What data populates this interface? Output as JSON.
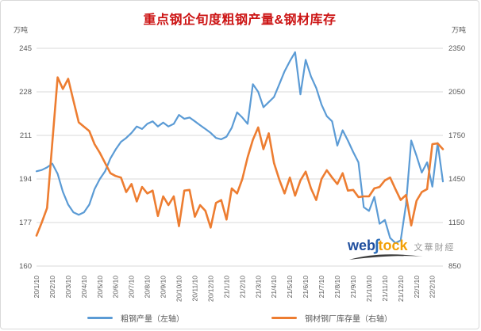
{
  "title": "重点钢企旬度粗钢产量&钢材库存",
  "unit_left": "万吨",
  "unit_right": "万吨",
  "legend": {
    "series1_label": "粗钢产量（左轴）",
    "series2_label": "钢材钢厂库存量（右轴）"
  },
  "watermark": {
    "web": "web",
    "tock": "tock",
    "cn": "文華財經"
  },
  "colors": {
    "series1": "#5b9bd5",
    "series2": "#ed7d31",
    "grid": "#d9d9d9",
    "tick_text": "#595959",
    "title": "#cc1414"
  },
  "chart_data": {
    "type": "line",
    "title": "重点钢企旬度粗钢产量&钢材库存",
    "x_tick_labels": [
      "20/1/10",
      "20/2/10",
      "20/3/10",
      "20/4/10",
      "20/5/10",
      "20/6/10",
      "20/7/10",
      "20/8/10",
      "20/9/10",
      "20/10/10",
      "20/11/10",
      "20/12/10",
      "21/1/10",
      "21/2/10",
      "21/3/10",
      "21/4/10",
      "21/5/10",
      "21/6/10",
      "21/7/10",
      "21/8/10",
      "21/9/10",
      "21/10/10",
      "21/11/10",
      "21/12/10",
      "22/1/10",
      "22/2/10"
    ],
    "points_per_month": 3,
    "left_axis": {
      "ticks": [
        245,
        228,
        211,
        194,
        177,
        160
      ],
      "min": 160,
      "max": 245
    },
    "right_axis": {
      "ticks": [
        2350,
        2050,
        1750,
        1450,
        1150,
        850
      ],
      "min": 850,
      "max": 2350
    },
    "grid": true,
    "legend_position": "bottom",
    "series": [
      {
        "name": "粗钢产量（左轴）",
        "axis": "left",
        "color": "#5b9bd5",
        "values": [
          197,
          197.5,
          198.5,
          200,
          196,
          189,
          184,
          181,
          180,
          181,
          184,
          190,
          194,
          197,
          202,
          205.5,
          208.5,
          210,
          212,
          214.5,
          213.5,
          215.5,
          216.5,
          214.5,
          216,
          214.5,
          215.5,
          219,
          217.5,
          218,
          216.5,
          215,
          213.5,
          212,
          210,
          209.5,
          210.5,
          214,
          220,
          218,
          215.5,
          231,
          228,
          222,
          224,
          226,
          231,
          236,
          240,
          243.5,
          227,
          240.5,
          234,
          229.5,
          223,
          218.5,
          216.5,
          207,
          213,
          209,
          204.5,
          200.5,
          183,
          181.5,
          187,
          176.5,
          178,
          171,
          169,
          170,
          184,
          209,
          203,
          196.5,
          200.5,
          191,
          208,
          193
        ]
      },
      {
        "name": "钢材钢厂库存量（右轴）",
        "axis": "right",
        "color": "#ed7d31",
        "values": [
          1060,
          1150,
          1250,
          1700,
          2150,
          2070,
          2140,
          1990,
          1840,
          1810,
          1780,
          1690,
          1630,
          1560,
          1490,
          1470,
          1460,
          1360,
          1415,
          1295,
          1395,
          1350,
          1370,
          1195,
          1330,
          1270,
          1330,
          1125,
          1370,
          1375,
          1190,
          1270,
          1230,
          1115,
          1285,
          1305,
          1170,
          1385,
          1350,
          1450,
          1600,
          1720,
          1805,
          1655,
          1765,
          1560,
          1445,
          1350,
          1460,
          1335,
          1440,
          1500,
          1385,
          1305,
          1450,
          1510,
          1460,
          1415,
          1490,
          1370,
          1375,
          1325,
          1330,
          1330,
          1385,
          1395,
          1440,
          1460,
          1380,
          1305,
          1340,
          1130,
          1300,
          1360,
          1380,
          1690,
          1695,
          1655
        ]
      }
    ]
  }
}
